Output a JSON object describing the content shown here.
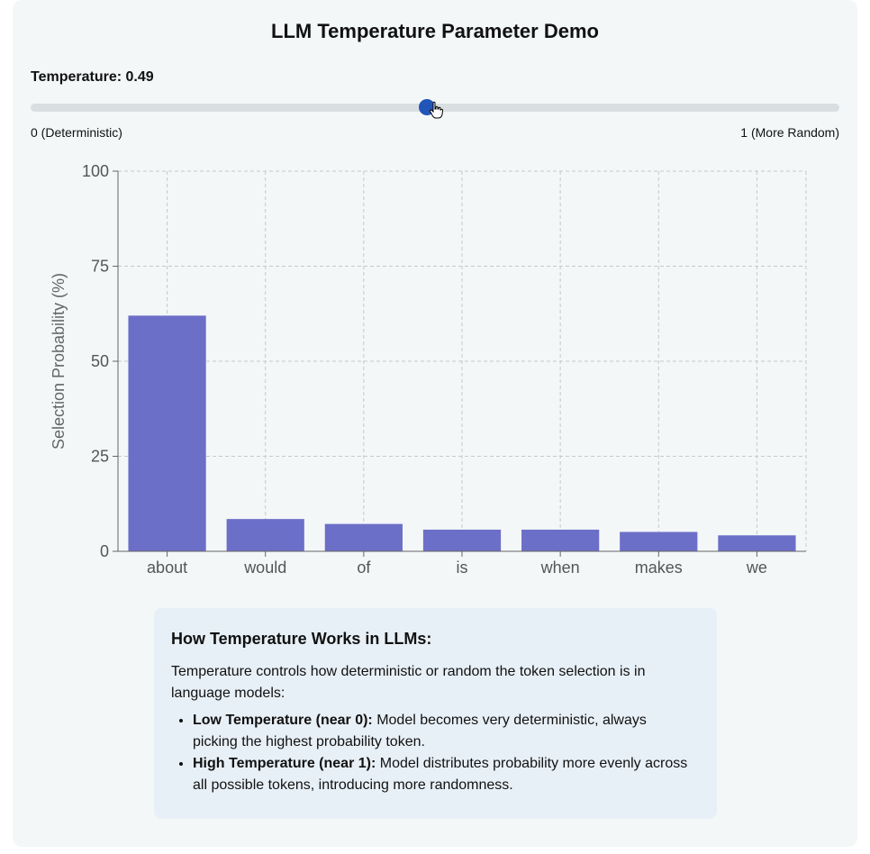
{
  "title": "LLM Temperature Parameter Demo",
  "slider": {
    "label": "Temperature: 0.49",
    "value": 0.49,
    "min": 0,
    "max": 1,
    "min_label": "0 (Deterministic)",
    "max_label": "1 (More Random)"
  },
  "colors": {
    "bar": "#6c6fc8",
    "thumb": "#2156b8"
  },
  "chart_data": {
    "type": "bar",
    "categories": [
      "about",
      "would",
      "of",
      "is",
      "when",
      "makes",
      "we"
    ],
    "values": [
      62,
      8.5,
      7.2,
      5.7,
      5.7,
      5.1,
      4.2
    ],
    "ylabel": "Selection Probability (%)",
    "xlabel": "",
    "ylim": [
      0,
      100
    ],
    "yticks": [
      "0",
      "25",
      "50",
      "75",
      "100"
    ],
    "grid": true,
    "legend": "none"
  },
  "info": {
    "title": "How Temperature Works in LLMs:",
    "intro": "Temperature controls how deterministic or random the token selection is in language models:",
    "items": [
      {
        "label": "Low Temperature (near 0):",
        "text": "Model becomes very deterministic, always picking the highest probability token."
      },
      {
        "label": "High Temperature (near 1):",
        "text": "Model distributes probability more evenly across all possible tokens, introducing more randomness."
      }
    ]
  }
}
